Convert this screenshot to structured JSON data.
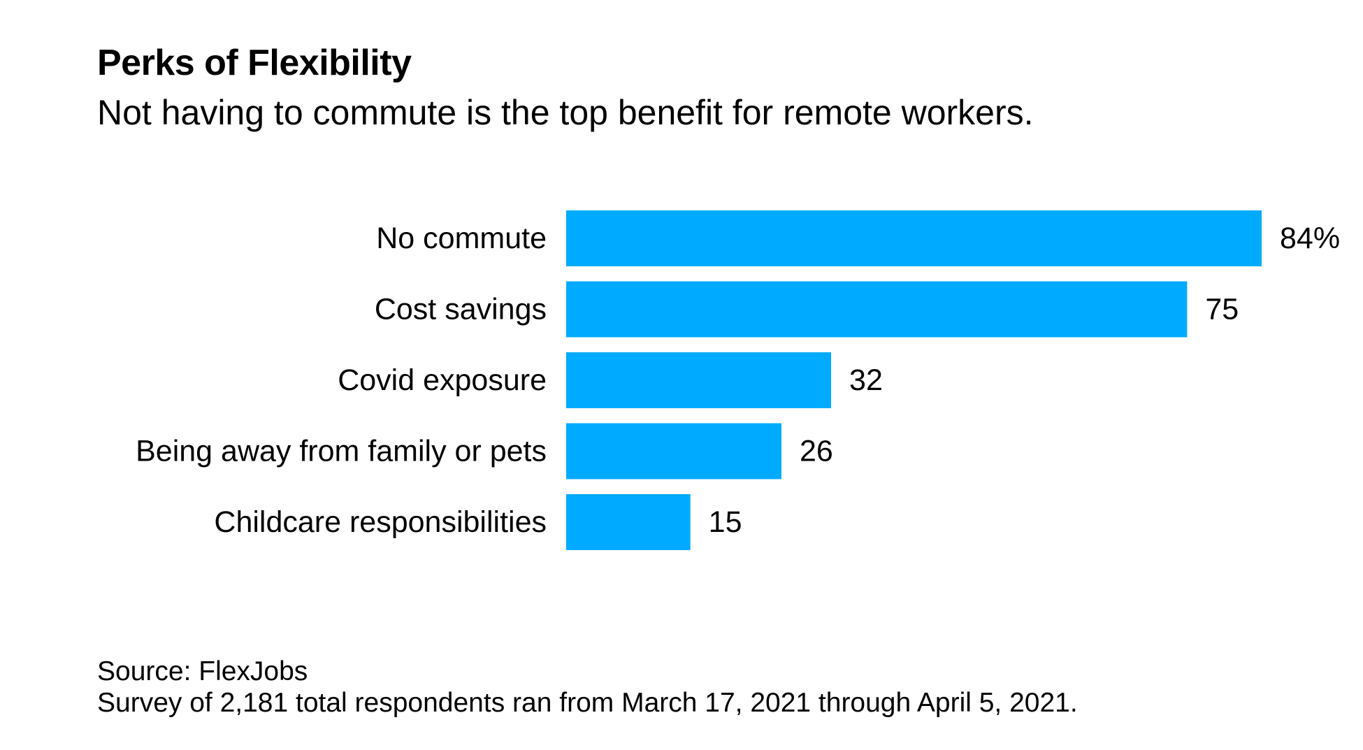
{
  "chart_data": {
    "type": "bar",
    "orientation": "horizontal",
    "title": "Perks of Flexibility",
    "subtitle": "Not having to commute is the top benefit for remote workers.",
    "categories": [
      "No commute",
      "Cost savings",
      "Covid exposure",
      "Being away from family or pets",
      "Childcare responsibilities"
    ],
    "values": [
      84,
      75,
      32,
      26,
      15
    ],
    "value_labels": [
      "84%",
      "75",
      "32",
      "26",
      "15"
    ],
    "unit": "%",
    "xlim": [
      0,
      84
    ],
    "grid": false,
    "legend": "none",
    "bar_color": "#00abff"
  },
  "footer": {
    "source": "Source: FlexJobs",
    "note": "Survey of 2,181 total respondents ran from March 17, 2021 through April 5, 2021."
  }
}
